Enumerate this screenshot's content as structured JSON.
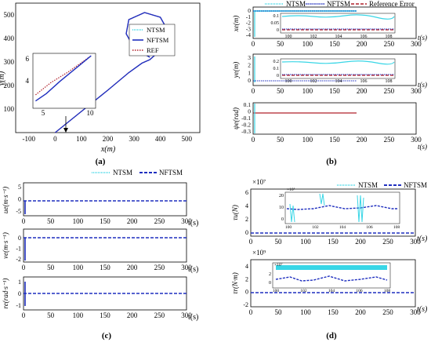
{
  "colors": {
    "ntsm": "#39d6e6",
    "nftsm": "#1f2fbf",
    "ref": "#b0202a",
    "axis": "#000000",
    "box": "#555555"
  },
  "chart_data": [
    {
      "panel": "(a)",
      "type": "line",
      "xlabel": "x(m)",
      "ylabel": "y(m)",
      "xlim": [
        -150,
        550
      ],
      "ylim": [
        0,
        550
      ],
      "xticks": [
        "-100",
        "0",
        "100",
        "200",
        "300",
        "400",
        "500"
      ],
      "yticks": [
        "100",
        "200",
        "300",
        "400",
        "500"
      ],
      "legend": [
        "NTSM",
        "NFTSM",
        "REF"
      ],
      "legend_position": "top-right",
      "series": [
        {
          "name": "REF",
          "x": [
            0,
            100,
            200,
            280,
            330,
            360,
            420,
            430,
            400,
            340,
            280,
            270,
            300,
            360
          ],
          "y": [
            0,
            90,
            180,
            255,
            295,
            310,
            370,
            430,
            490,
            510,
            480,
            420,
            360,
            320
          ]
        },
        {
          "name": "NFTSM",
          "x": [
            0,
            100,
            200,
            280,
            330,
            360,
            420,
            430,
            400,
            340,
            280,
            270,
            300,
            360
          ],
          "y": [
            0,
            90,
            180,
            255,
            295,
            310,
            370,
            430,
            490,
            510,
            480,
            420,
            360,
            320
          ]
        },
        {
          "name": "NTSM",
          "x": [
            0,
            100,
            200,
            280,
            330,
            360,
            420,
            430,
            400,
            340,
            280,
            270,
            300,
            360
          ],
          "y": [
            0,
            90,
            180,
            255,
            295,
            310,
            370,
            430,
            490,
            510,
            480,
            420,
            360,
            320
          ]
        }
      ],
      "inset": {
        "xticks": [
          "5",
          "10"
        ],
        "yticks": [
          "4",
          "6"
        ],
        "xlim": [
          4,
          11
        ],
        "ylim": [
          2.5,
          7
        ],
        "series": [
          {
            "name": "REF",
            "x": [
              4.3,
              6,
              8,
              10.5
            ],
            "y": [
              3.6,
              4.6,
              5.5,
              6.8
            ]
          },
          {
            "name": "NFTSM",
            "x": [
              4.3,
              5.5,
              7,
              8.5,
              10.5
            ],
            "y": [
              3.1,
              3.7,
              4.7,
              5.6,
              6.8
            ]
          }
        ]
      }
    },
    {
      "panel": "(b)",
      "type": "line",
      "xlabel": "t(s)",
      "legend": [
        "NTSM",
        "NFTSM",
        "Reference Error"
      ],
      "legend_position": "top",
      "xticks": [
        "0",
        "50",
        "100",
        "150",
        "200",
        "250",
        "300"
      ],
      "xlim": [
        0,
        300
      ],
      "subplots": [
        {
          "ylabel": "xe(m)",
          "ylim": [
            -5,
            0.5
          ],
          "yticks": [
            "0",
            "-1",
            "-2",
            "-3",
            "-4"
          ],
          "inset": {
            "yticks": [
              "0.1",
              "0.05",
              "0"
            ],
            "xticks": [
              "100",
              "102",
              "104",
              "106",
              "108"
            ]
          }
        },
        {
          "ylabel": "ye(m)",
          "ylim": [
            -0.5,
            3.5
          ],
          "yticks": [
            "3",
            "2",
            "1",
            "0"
          ],
          "inset": {
            "yticks": [
              "0.2",
              "0.1",
              "0"
            ],
            "xticks": [
              "100",
              "102",
              "104",
              "106",
              "108"
            ]
          }
        },
        {
          "ylabel": "ψe(rad)",
          "ylim": [
            -0.35,
            0.15
          ],
          "yticks": [
            "0.1",
            "0",
            "-0.1",
            "-0.2",
            "-0.3"
          ]
        }
      ]
    },
    {
      "panel": "(c)",
      "type": "line",
      "xlabel": "t(s)",
      "legend": [
        "NTSM",
        "NFTSM"
      ],
      "legend_position": "top",
      "xticks": [
        "0",
        "50",
        "100",
        "150",
        "200",
        "250",
        "300"
      ],
      "xlim": [
        0,
        300
      ],
      "subplots": [
        {
          "ylabel": "ue(m·s⁻¹)",
          "ylim": [
            -6,
            6
          ],
          "yticks": [
            "5",
            "0",
            "-5"
          ]
        },
        {
          "ylabel": "ve(m·s⁻¹)",
          "ylim": [
            -2,
            0.5
          ],
          "yticks": [
            "0",
            "-1",
            "-2"
          ]
        },
        {
          "ylabel": "re(rad·s⁻¹)",
          "ylim": [
            -1.2,
            1.2
          ],
          "yticks": [
            "1",
            "0",
            "-1"
          ]
        }
      ]
    },
    {
      "panel": "(d)",
      "type": "line",
      "xlabel": "t(s)",
      "legend": [
        "NTSM",
        "NFTSM"
      ],
      "legend_position": "top",
      "xticks": [
        "0",
        "50",
        "100",
        "150",
        "200",
        "250",
        "300"
      ],
      "xlim": [
        0,
        300
      ],
      "subplots": [
        {
          "ylabel": "τu(N)",
          "exponent": "×10⁷",
          "ylim": [
            -1,
            6.5
          ],
          "yticks": [
            "6",
            "4",
            "2",
            "0"
          ],
          "inset": {
            "exponent": "×10⁵",
            "yticks": [
              "20",
              "10",
              "0"
            ],
            "xticks": [
              "100",
              "102",
              "104",
              "106",
              "108"
            ]
          }
        },
        {
          "ylabel": "τr(N·m)",
          "exponent": "×10⁹",
          "ylim": [
            -3,
            5.5
          ],
          "yticks": [
            "4",
            "2",
            "0",
            "-2"
          ],
          "inset": {
            "exponent": "×10⁷",
            "yticks": [
              "2",
              "0"
            ],
            "xticks": [
              "100",
              "102",
              "104",
              "106",
              "108"
            ]
          }
        }
      ]
    }
  ]
}
